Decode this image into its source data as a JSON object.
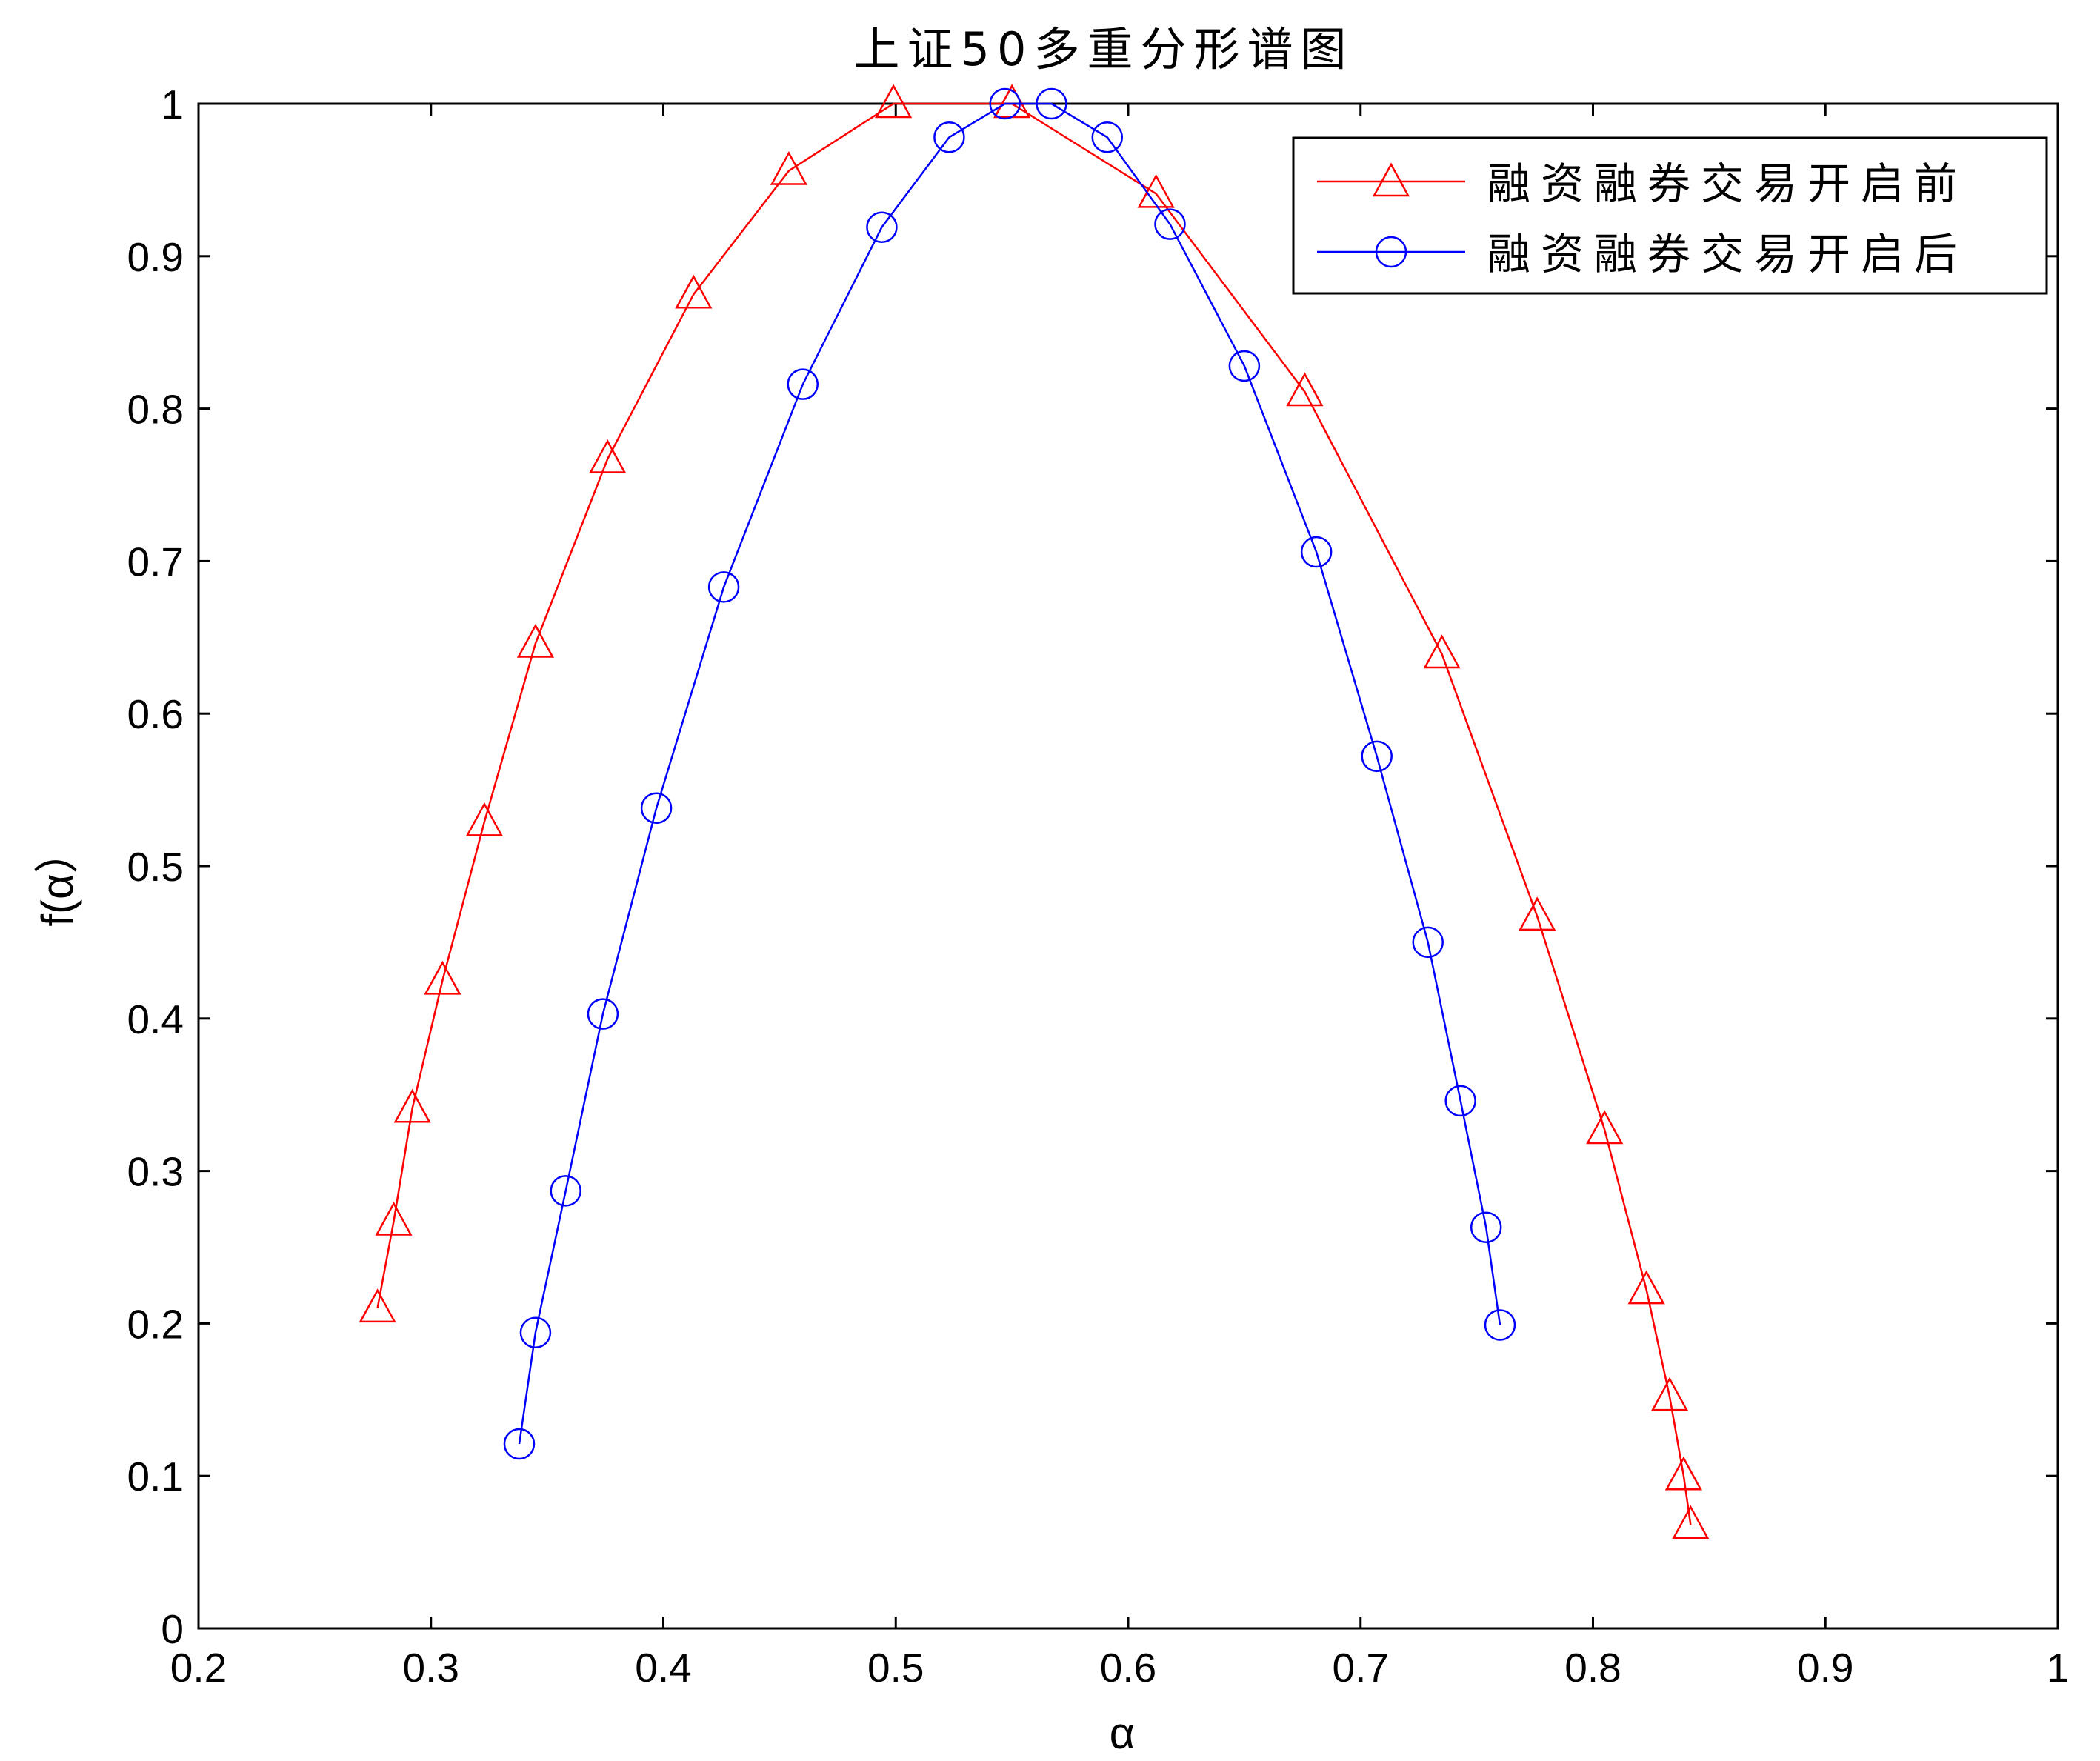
{
  "chart_data": {
    "type": "line",
    "title": "上证50多重分形谱图",
    "xlabel": "α",
    "ylabel": "f(α）",
    "xlim": [
      0.2,
      1
    ],
    "ylim": [
      0,
      1
    ],
    "xticks": [
      "0.2",
      "0.3",
      "0.4",
      "0.5",
      "0.6",
      "0.7",
      "0.8",
      "0.9",
      "1"
    ],
    "yticks": [
      "0",
      "0.1",
      "0.2",
      "0.3",
      "0.4",
      "0.5",
      "0.6",
      "0.7",
      "0.8",
      "0.9",
      "1"
    ],
    "grid": false,
    "box": true,
    "legend_position": "top-right",
    "series": [
      {
        "name": "融资融券交易开启前",
        "color": "#ff0000",
        "marker": "triangle",
        "x": [
          0.277,
          0.284,
          0.292,
          0.305,
          0.323,
          0.345,
          0.376,
          0.413,
          0.454,
          0.499,
          0.55,
          0.612,
          0.676,
          0.735,
          0.776,
          0.805,
          0.823,
          0.833,
          0.839,
          0.842
        ],
        "y": [
          0.21,
          0.267,
          0.341,
          0.425,
          0.529,
          0.646,
          0.767,
          0.875,
          0.956,
          1.0,
          1.0,
          0.941,
          0.811,
          0.639,
          0.467,
          0.327,
          0.222,
          0.152,
          0.1,
          0.068
        ]
      },
      {
        "name": "融资融券交易开启后",
        "color": "#0000ff",
        "marker": "circle",
        "x": [
          0.338,
          0.345,
          0.358,
          0.374,
          0.397,
          0.426,
          0.46,
          0.494,
          0.523,
          0.547,
          0.567,
          0.591,
          0.618,
          0.65,
          0.681,
          0.707,
          0.729,
          0.743,
          0.754,
          0.76
        ],
        "y": [
          0.121,
          0.194,
          0.287,
          0.403,
          0.538,
          0.683,
          0.816,
          0.919,
          0.978,
          1.0,
          1.0,
          0.978,
          0.921,
          0.828,
          0.706,
          0.572,
          0.45,
          0.346,
          0.263,
          0.199
        ]
      }
    ]
  }
}
